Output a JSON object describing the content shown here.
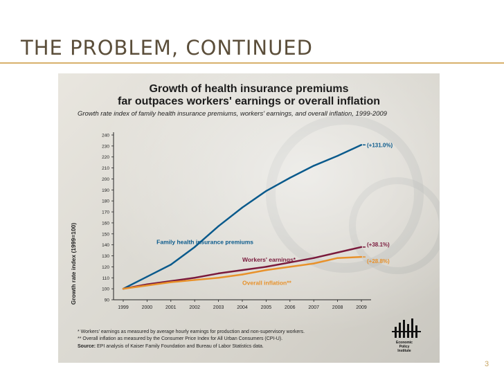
{
  "slide": {
    "title": "THE PROBLEM, CONTINUED",
    "page_number": "3"
  },
  "chart_data": {
    "type": "line",
    "title_line1": "Growth of health insurance premiums",
    "title_line2": "far outpaces workers' earnings or overall inflation",
    "subtitle": "Growth rate index of family health insurance premiums, workers' earnings, and overall inflation, 1999-2009",
    "ylabel": "Growth rate index (1999=100)",
    "xlabel": "",
    "ylim": [
      90,
      240
    ],
    "yticks": [
      90,
      100,
      110,
      120,
      130,
      140,
      150,
      160,
      170,
      180,
      190,
      200,
      210,
      220,
      230,
      240
    ],
    "x": [
      "1999",
      "2000",
      "2001",
      "2002",
      "2003",
      "2004",
      "2005",
      "2006",
      "2007",
      "2008",
      "2009"
    ],
    "series": [
      {
        "name": "Family health insurance premiums",
        "color": "#0a5a8c",
        "values": [
          100,
          111,
          122,
          138,
          157,
          174,
          189,
          201,
          212,
          221,
          231
        ],
        "end_label": "(+131.0%)"
      },
      {
        "name": "Workers' earnings*",
        "color": "#7a1a3c",
        "values": [
          100,
          104,
          107,
          110,
          114,
          117,
          120,
          124,
          128,
          133,
          138
        ],
        "end_label": "(+38.1%)"
      },
      {
        "name": "Overall inflation**",
        "color": "#e8912a",
        "values": [
          100,
          103,
          106,
          108,
          110,
          113,
          117,
          120,
          123,
          128,
          129
        ],
        "end_label": "(+28.8%)"
      }
    ],
    "footnotes": {
      "note1": "* Workers' earnings as measured by average hourly earnings for production and non-supervisory workers.",
      "note2": "** Overall inflation as measured by the Consumer Price Index for All Urban Consumers (CPI-U).",
      "source_label": "Source:",
      "source_text": "EPI analysis of Kaiser Family Foundation and Bureau of Labor Statistics data."
    },
    "logo": {
      "line1": "Economic",
      "line2": "Policy",
      "line3": "Institute"
    }
  }
}
